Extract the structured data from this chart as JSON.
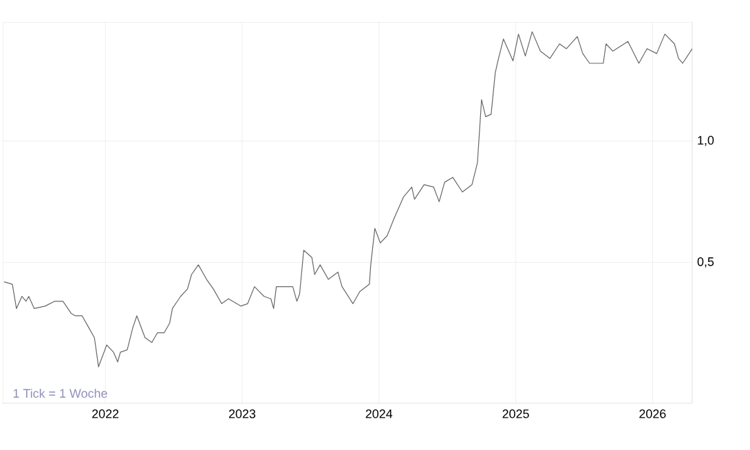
{
  "chart_data": {
    "type": "line",
    "x": [
      2021.26,
      2021.32,
      2021.35,
      2021.39,
      2021.42,
      2021.44,
      2021.48,
      2021.56,
      2021.63,
      2021.69,
      2021.75,
      2021.78,
      2021.83,
      2021.88,
      2021.92,
      2021.95,
      2022.01,
      2022.06,
      2022.09,
      2022.11,
      2022.16,
      2022.2,
      2022.23,
      2022.29,
      2022.34,
      2022.38,
      2022.43,
      2022.47,
      2022.49,
      2022.55,
      2022.6,
      2022.63,
      2022.68,
      2022.74,
      2022.79,
      2022.85,
      2022.9,
      2022.99,
      2023.04,
      2023.09,
      2023.16,
      2023.21,
      2023.23,
      2023.25,
      2023.31,
      2023.37,
      2023.4,
      2023.42,
      2023.45,
      2023.51,
      2023.53,
      2023.57,
      2023.63,
      2023.7,
      2023.73,
      2023.81,
      2023.86,
      2023.93,
      2023.94,
      2023.97,
      2024.01,
      2024.06,
      2024.11,
      2024.18,
      2024.24,
      2024.26,
      2024.33,
      2024.4,
      2024.44,
      2024.48,
      2024.54,
      2024.61,
      2024.68,
      2024.72,
      2024.75,
      2024.78,
      2024.82,
      2024.85,
      2024.87,
      2024.91,
      2024.98,
      2025.02,
      2025.07,
      2025.12,
      2025.18,
      2025.25,
      2025.32,
      2025.37,
      2025.45,
      2025.49,
      2025.54,
      2025.64,
      2025.66,
      2025.71,
      2025.82,
      2025.9,
      2025.96,
      2026.03,
      2026.09,
      2026.16,
      2026.19,
      2026.22,
      2026.29
    ],
    "series": [
      {
        "color": "#666666",
        "values": [
          0.42,
          0.41,
          0.31,
          0.36,
          0.34,
          0.36,
          0.31,
          0.32,
          0.34,
          0.34,
          0.29,
          0.28,
          0.28,
          0.23,
          0.19,
          0.07,
          0.16,
          0.13,
          0.09,
          0.13,
          0.14,
          0.23,
          0.28,
          0.19,
          0.17,
          0.21,
          0.21,
          0.25,
          0.31,
          0.36,
          0.39,
          0.45,
          0.49,
          0.43,
          0.39,
          0.33,
          0.35,
          0.32,
          0.33,
          0.4,
          0.36,
          0.35,
          0.31,
          0.4,
          0.4,
          0.4,
          0.34,
          0.37,
          0.55,
          0.52,
          0.45,
          0.49,
          0.43,
          0.46,
          0.4,
          0.33,
          0.38,
          0.41,
          0.49,
          0.64,
          0.58,
          0.61,
          0.68,
          0.77,
          0.81,
          0.76,
          0.82,
          0.81,
          0.75,
          0.83,
          0.85,
          0.79,
          0.82,
          0.91,
          1.17,
          1.1,
          1.11,
          1.28,
          1.33,
          1.42,
          1.33,
          1.44,
          1.35,
          1.45,
          1.37,
          1.34,
          1.4,
          1.38,
          1.43,
          1.36,
          1.32,
          1.32,
          1.4,
          1.37,
          1.41,
          1.32,
          1.38,
          1.36,
          1.44,
          1.4,
          1.34,
          1.32,
          1.38
        ]
      }
    ],
    "xlim": [
      2021.25,
      2026.29
    ],
    "xticks": [
      2022,
      2023,
      2024,
      2025,
      2026
    ],
    "ylim": [
      -0.08,
      1.49
    ],
    "yticks": [
      {
        "value": 0.5,
        "label": "0,5"
      },
      {
        "value": 1.0,
        "label": "1,0"
      }
    ],
    "grid": true,
    "marker": "none",
    "line_style": "solid",
    "annotations": [
      "1 Tick = 1 Woche"
    ]
  }
}
